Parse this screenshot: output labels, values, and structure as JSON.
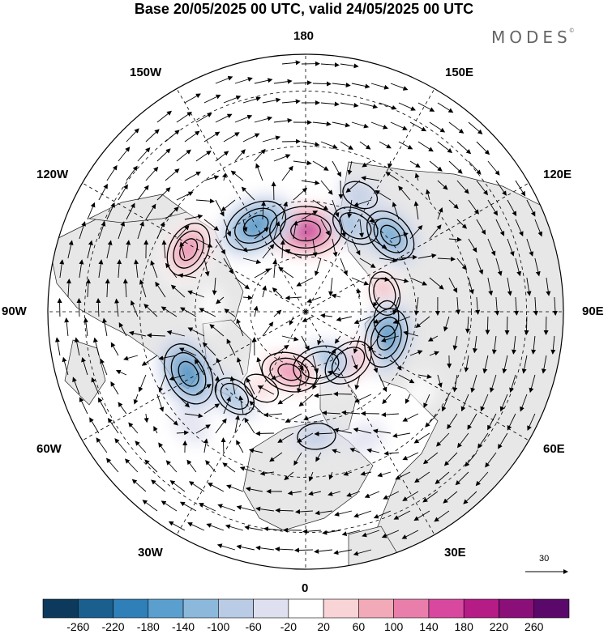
{
  "title": "Base 20/05/2025 00 UTC, valid 24/05/2025 00 UTC",
  "brand": "MODES",
  "brand_mark": "©",
  "longitude_labels": {
    "top": "180",
    "bottom": "0",
    "left": "90W",
    "right": "90E",
    "upper_left_1": "150W",
    "upper_left_2": "120W",
    "upper_right_1": "150E",
    "upper_right_2": "120E",
    "lower_left_1": "60W",
    "lower_left_2": "30W",
    "lower_right_1": "60E",
    "lower_right_2": "30E"
  },
  "vector_reference": "30",
  "colorbar": {
    "colors": [
      "#0d3a5c",
      "#1a5f8e",
      "#2f7fb8",
      "#5a9fce",
      "#8cb8db",
      "#b9cbe5",
      "#dfe0ef",
      "#ffffff",
      "#f9d4d6",
      "#f3aab8",
      "#ea7eab",
      "#d8489e",
      "#b51c86",
      "#8a0f79",
      "#5a096b"
    ],
    "tick_labels": [
      "-260",
      "-220",
      "-180",
      "-140",
      "-100",
      "-60",
      "-20",
      "20",
      "60",
      "100",
      "140",
      "180",
      "220",
      "260"
    ]
  },
  "anomalies": [
    {
      "lon": 180,
      "colat": 22,
      "value": 240
    },
    {
      "lon": 200,
      "colat": 12,
      "value": 40
    },
    {
      "lon": 150,
      "colat": 27,
      "value": -120
    },
    {
      "lon": 155,
      "colat": 35,
      "value": -60
    },
    {
      "lon": 210,
      "colat": 27,
      "value": -200
    },
    {
      "lon": 195,
      "colat": 38,
      "value": 40
    },
    {
      "lon": 132,
      "colat": 31,
      "value": -160
    },
    {
      "lon": 242,
      "colat": 36,
      "value": 160
    },
    {
      "lon": 268,
      "colat": 26,
      "value": 40
    },
    {
      "lon": 103,
      "colat": 22,
      "value": 100
    },
    {
      "lon": 85,
      "colat": 22,
      "value": 60
    },
    {
      "lon": 298,
      "colat": 36,
      "value": -200
    },
    {
      "lon": 320,
      "colat": 30,
      "value": -100
    },
    {
      "lon": 72,
      "colat": 23,
      "value": -180
    },
    {
      "lon": 40,
      "colat": 18,
      "value": 140
    },
    {
      "lon": 15,
      "colat": 15,
      "value": -150
    },
    {
      "lon": 345,
      "colat": 17,
      "value": 160
    },
    {
      "lon": 330,
      "colat": 24,
      "value": 60
    },
    {
      "lon": 25,
      "colat": 38,
      "value": -40
    },
    {
      "lon": 5,
      "colat": 34,
      "value": -70
    },
    {
      "lon": 55,
      "colat": 38,
      "value": 30
    },
    {
      "lon": 315,
      "colat": 44,
      "value": -40
    }
  ]
}
